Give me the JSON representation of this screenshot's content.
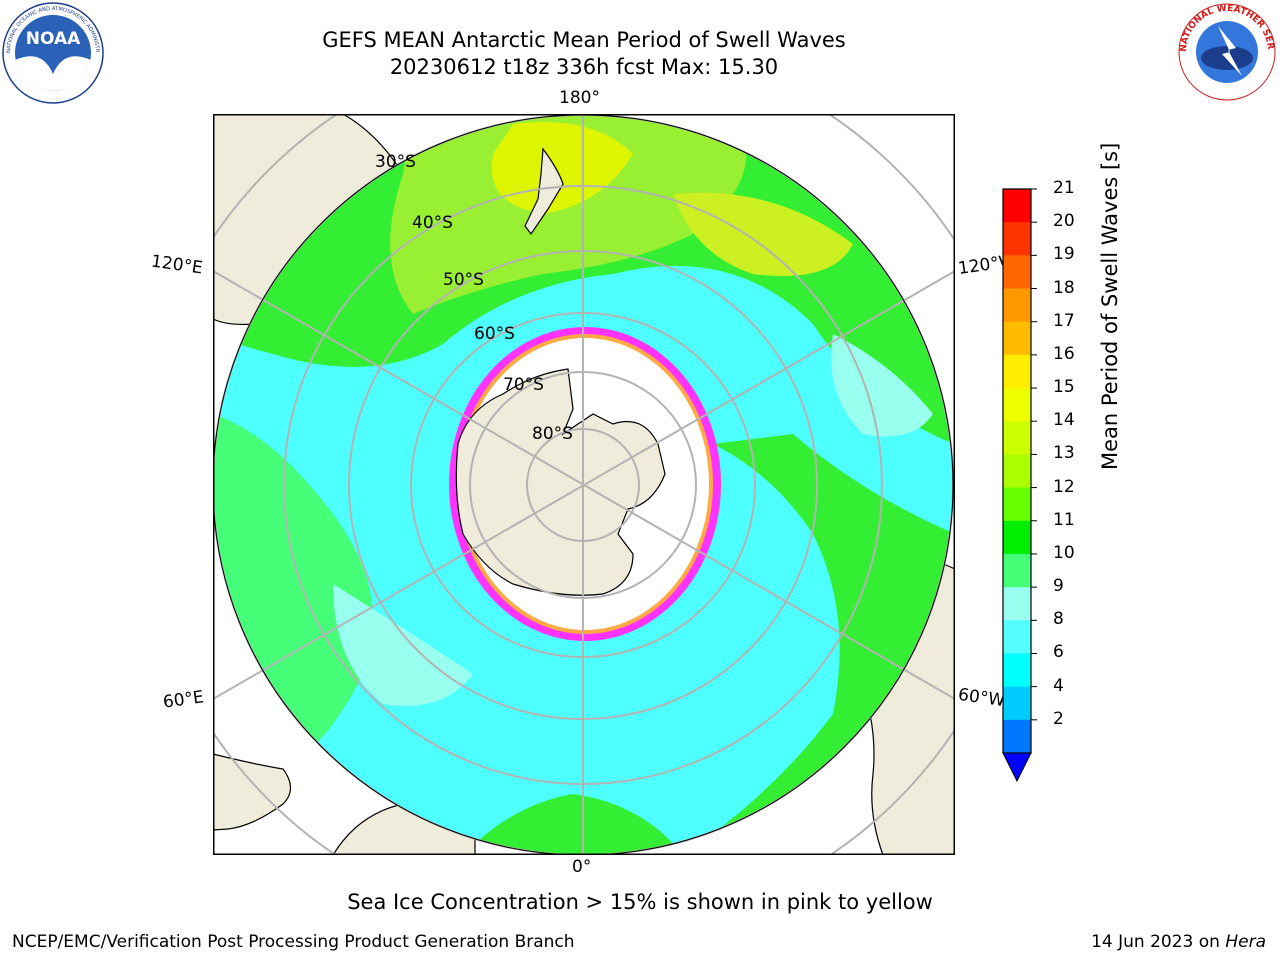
{
  "header": {
    "title_line1": "GEFS MEAN Antarctic Mean Period of Swell Waves",
    "title_line2": "20230612 t18z 336h fcst   Max: 15.30"
  },
  "logos": {
    "noaa": "NOAA",
    "noaa_ring": "NATIONAL OCEANIC AND ATMOSPHERIC ADMINISTRATION · U.S. DEPARTMENT OF COMMERCE",
    "nws_ring": "NATIONAL WEATHER SERVICE"
  },
  "map": {
    "projection": "south-polar-stereographic",
    "lon_labels": {
      "top": "180°",
      "bottom": "0°",
      "left_upper": "120°E",
      "right_upper": "120°W",
      "left_lower": "60°E",
      "right_lower": "60°W"
    },
    "lat_labels": [
      "30°S",
      "40°S",
      "50°S",
      "60°S",
      "70°S",
      "80°S"
    ],
    "colors": {
      "land": "#efecdc",
      "ice_free_ocean_light": "#4dffff",
      "ocean_green": "#33ee33",
      "ice_edge": "#ff33ff",
      "grid": "#b3b3b3"
    }
  },
  "colorbar": {
    "label": "Mean Period of Swell Waves [s]",
    "ticks": [
      "21",
      "20",
      "19",
      "18",
      "17",
      "16",
      "15",
      "14",
      "13",
      "12",
      "11",
      "10",
      "9",
      "8",
      "6",
      "4",
      "2"
    ],
    "colors": [
      "#ff0000",
      "#ff3300",
      "#ff6600",
      "#ff9900",
      "#ffbb00",
      "#ffee00",
      "#eeff00",
      "#ccff00",
      "#aaff00",
      "#66ff00",
      "#00ee00",
      "#44ff77",
      "#99ffee",
      "#55ffff",
      "#00ffff",
      "#00ccff",
      "#0077ff"
    ],
    "under_color": "#0000ff"
  },
  "notes": {
    "ice": "Sea Ice Concentration > 15% is shown in pink to yellow",
    "footer_left": "NCEP/EMC/Verification Post Processing Product Generation Branch",
    "footer_date": "14 Jun 2023 on ",
    "footer_host": "Hera"
  }
}
